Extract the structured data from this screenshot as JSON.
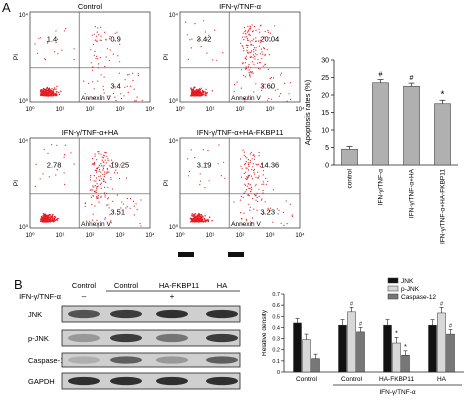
{
  "panel_a": {
    "label": "A",
    "flow_plots": [
      {
        "title": "Control",
        "quadrants": {
          "ul": "1.4",
          "ur": "0.9",
          "lr": "3.4"
        }
      },
      {
        "title": "IFN-γ/TNF-α",
        "quadrants": {
          "ul": "3.42",
          "ur": "20.04",
          "lr": "3.60"
        }
      },
      {
        "title": "IFN-γ/TNF-α+HA",
        "quadrants": {
          "ul": "2.78",
          "ur": "19.25",
          "lr": "3.51"
        }
      },
      {
        "title": "IFN-γ/TNF-α+HA-FKBP11",
        "quadrants": {
          "ul": "3.19",
          "ur": "14.36",
          "lr": "3.23"
        }
      }
    ],
    "x_axis_label": "Annexin V",
    "y_axis_label": "PI",
    "tick_labels": [
      "10⁰",
      "10¹",
      "10²",
      "10³",
      "10⁴"
    ],
    "dot_color": "#e41c24"
  },
  "panel_b": {
    "label": "B",
    "blot": {
      "treatment_label": "IFN-γ/TNF-α",
      "header_groups": [
        "Control",
        "Control",
        "HA-FKBP11",
        "HA"
      ],
      "treatment_marks": [
        "–",
        "",
        "+",
        ""
      ],
      "rows": [
        "JNK",
        "p-JNK",
        "Caspase-12",
        "GAPDH"
      ]
    }
  },
  "chart_data": [
    {
      "type": "bar",
      "categories": [
        "control",
        "IFN-γ/TNF-α",
        "IFN-γ/TNF-α+HA",
        "IFN-γ/TNF-α+HA-FKBP11"
      ],
      "values": [
        4.5,
        23.5,
        22.5,
        17.5
      ],
      "errors": [
        0.8,
        0.9,
        0.9,
        1.0
      ],
      "annotations": [
        "",
        "#",
        "#",
        "*"
      ],
      "ylabel": "Apoptosis rates (%)",
      "ylim": [
        0,
        30
      ],
      "yticks": [
        0,
        5,
        10,
        15,
        20,
        25,
        30
      ],
      "bar_color": "#b0b0b0",
      "grid": false
    },
    {
      "type": "bar",
      "ylabel": "Relative density",
      "ylim": [
        0,
        0.7
      ],
      "yticks": [
        0,
        0.1,
        0.2,
        0.3,
        0.4,
        0.5,
        0.6,
        0.7
      ],
      "xlabel": "IFN-γ/TNF-α",
      "legend_position": "top-right",
      "categories": [
        "Control",
        "Control",
        "HA-FKBP11",
        "HA"
      ],
      "series": [
        {
          "name": "JNK",
          "color": "#111111",
          "values": [
            0.44,
            0.42,
            0.42,
            0.42
          ],
          "errors": [
            0.04,
            0.05,
            0.05,
            0.05
          ]
        },
        {
          "name": "p-JNK",
          "color": "#d8d8d8",
          "values": [
            0.29,
            0.54,
            0.26,
            0.53
          ],
          "errors": [
            0.05,
            0.04,
            0.05,
            0.05
          ]
        },
        {
          "name": "Caspase-12",
          "color": "#777777",
          "values": [
            0.12,
            0.36,
            0.15,
            0.34
          ],
          "errors": [
            0.04,
            0.04,
            0.04,
            0.04
          ]
        }
      ],
      "annotations": [
        {
          "group": 1,
          "series": 1,
          "text": "#"
        },
        {
          "group": 1,
          "series": 2,
          "text": "#"
        },
        {
          "group": 2,
          "series": 1,
          "text": "*"
        },
        {
          "group": 2,
          "series": 2,
          "text": "*"
        },
        {
          "group": 3,
          "series": 1,
          "text": "#"
        },
        {
          "group": 3,
          "series": 2,
          "text": "#"
        }
      ]
    }
  ]
}
